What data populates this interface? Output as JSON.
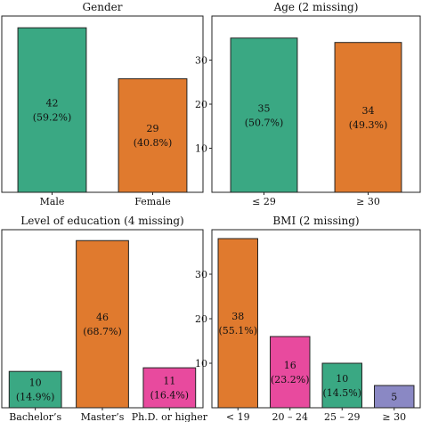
{
  "chart_data": [
    {
      "type": "bar",
      "title": "Gender",
      "categories": [
        "Male",
        "Female"
      ],
      "values": [
        42,
        29
      ],
      "value_labels": [
        "42",
        "29"
      ],
      "percent_labels": [
        "(59.2%)",
        "(40.8%)"
      ],
      "colors": [
        "#3aa883",
        "#e07a2e"
      ],
      "ylim": [
        0,
        45
      ],
      "yticks": [],
      "ytick_labels": [],
      "xlabel": "",
      "ylabel": "",
      "grid": false
    },
    {
      "type": "bar",
      "title": "Age (2 missing)",
      "categories": [
        "≤ 29",
        "≥ 30"
      ],
      "values": [
        35,
        34
      ],
      "value_labels": [
        "35",
        "34"
      ],
      "percent_labels": [
        "(50.7%)",
        "(49.3%)"
      ],
      "colors": [
        "#3aa883",
        "#e07a2e"
      ],
      "ylim": [
        0,
        40
      ],
      "yticks": [
        10,
        20,
        30
      ],
      "ytick_labels": [
        "10",
        "20",
        "30"
      ],
      "xlabel": "",
      "ylabel": "",
      "grid": false
    },
    {
      "type": "bar",
      "title": "Level of education (4 missing)",
      "categories": [
        "Bachelor’s",
        "Master’s",
        "Ph.D. or higher"
      ],
      "values": [
        10,
        46,
        11
      ],
      "value_labels": [
        "10",
        "46",
        "11"
      ],
      "percent_labels": [
        "(14.9%)",
        "(68.7%)",
        "(16.4%)"
      ],
      "colors": [
        "#3aa883",
        "#e07a2e",
        "#e84a9e"
      ],
      "ylim": [
        0,
        49
      ],
      "yticks": [],
      "ytick_labels": [],
      "xlabel": "",
      "ylabel": "",
      "grid": false
    },
    {
      "type": "bar",
      "title": "BMI (2 missing)",
      "categories": [
        "< 19",
        "20 – 24",
        "25 – 29",
        "≥ 30"
      ],
      "values": [
        38,
        16,
        10,
        5
      ],
      "value_labels": [
        "38",
        "16",
        "10",
        "5"
      ],
      "percent_labels": [
        "(55.1%)",
        "(23.2%)",
        "(14.5%)",
        ""
      ],
      "colors": [
        "#e07a2e",
        "#e84a9e",
        "#3aa883",
        "#8a88c4"
      ],
      "ylim": [
        0,
        40
      ],
      "yticks": [
        10,
        20,
        30
      ],
      "ytick_labels": [
        "10",
        "20",
        "30"
      ],
      "xlabel": "",
      "ylabel": "",
      "grid": false
    }
  ]
}
